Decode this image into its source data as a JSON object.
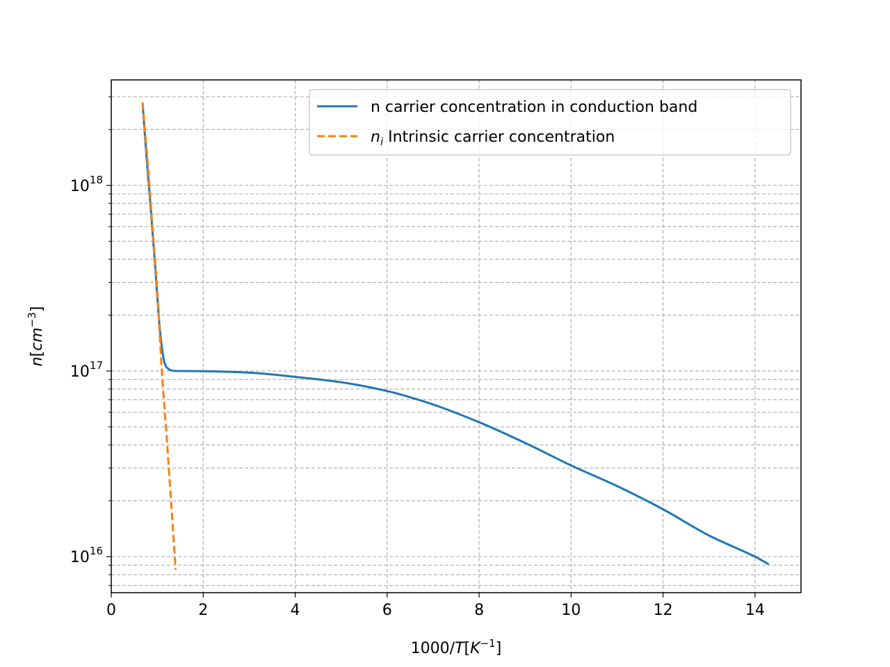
{
  "chart_data": {
    "type": "line",
    "xlabel": {
      "prefix": "1000/",
      "var": "T",
      "bracket_open": "[",
      "unit": "K",
      "exp": "−1",
      "bracket_close": "]"
    },
    "ylabel": {
      "var": "n",
      "bracket_open": "[",
      "unit": "cm",
      "exp": "−3",
      "bracket_close": "]"
    },
    "xlim": [
      0,
      15
    ],
    "ylim": [
      6400000000000000.0,
      3.7e+18
    ],
    "yscale": "log",
    "grid": true,
    "legend_position": "top-right",
    "x_ticks": [
      {
        "value": 0,
        "label": "0"
      },
      {
        "value": 2,
        "label": "2"
      },
      {
        "value": 4,
        "label": "4"
      },
      {
        "value": 6,
        "label": "6"
      },
      {
        "value": 8,
        "label": "8"
      },
      {
        "value": 10,
        "label": "10"
      },
      {
        "value": 12,
        "label": "12"
      },
      {
        "value": 14,
        "label": "14"
      }
    ],
    "y_ticks": [
      {
        "value": 1e+16,
        "base": "10",
        "exp": "16"
      },
      {
        "value": 1e+17,
        "base": "10",
        "exp": "17"
      },
      {
        "value": 1e+18,
        "base": "10",
        "exp": "18"
      }
    ],
    "series": [
      {
        "name": "n carrier concentration in conduction band",
        "color": "#1f77b4",
        "style": "solid",
        "x": [
          0.68,
          0.75,
          0.85,
          0.95,
          1.0,
          1.05,
          1.1,
          1.15,
          1.2,
          1.3,
          1.4,
          1.5,
          2.0,
          3.0,
          4.0,
          5.0,
          6.0,
          7.0,
          8.0,
          9.0,
          10.0,
          11.0,
          12.0,
          13.0,
          14.0,
          14.3
        ],
        "y": [
          2.8e+18,
          1.62e+18,
          8e+17,
          3.8e+17,
          2.55e+17,
          1.75e+17,
          1.35e+17,
          1.13e+17,
          1.05e+17,
          1.01e+17,
          1e+17,
          1e+17,
          9.98e+16,
          9.8e+16,
          9.3e+16,
          8.7e+16,
          7.8e+16,
          6.6e+16,
          5.3e+16,
          4.1e+16,
          3.1e+16,
          2.4e+16,
          1.8e+16,
          1.3e+16,
          1e+16,
          9100000000000000.0
        ]
      },
      {
        "name_var": "n",
        "name_sub": "i",
        "name_rest": " Intrinsic carrier concentration",
        "color": "#ff7f0e",
        "style": "dashed",
        "x": [
          0.68,
          0.8,
          0.9,
          1.0,
          1.1,
          1.2,
          1.3,
          1.4
        ],
        "y": [
          2.8e+18,
          1.25e+18,
          5.8e+17,
          2.7e+17,
          1e+17,
          4.6e+16,
          2e+16,
          8500000000000000.0
        ]
      }
    ]
  }
}
